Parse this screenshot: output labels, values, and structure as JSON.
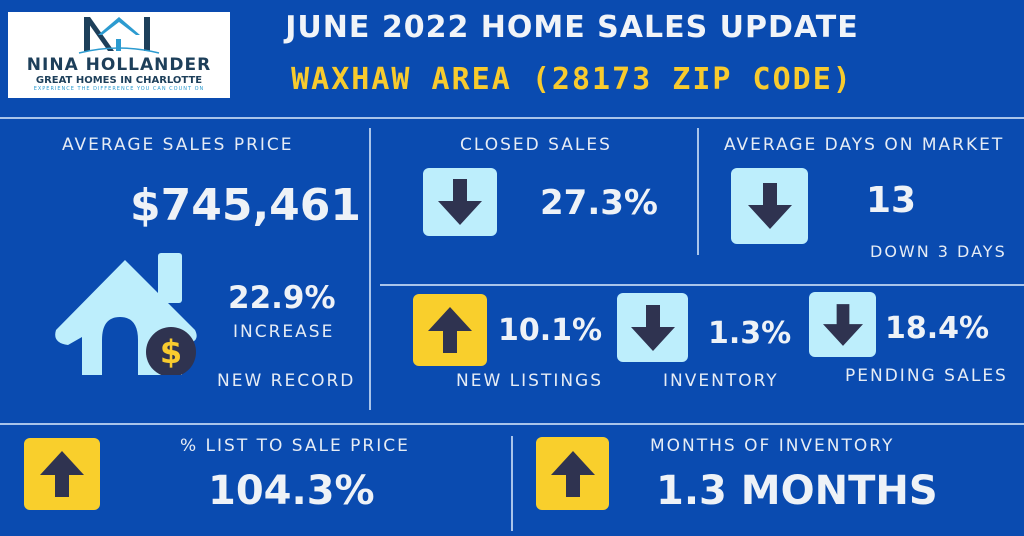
{
  "logo": {
    "monogram": "NH",
    "name": "NINA HOLLANDER",
    "tagline": "GREAT HOMES IN CHARLOTTE",
    "slogan": "EXPERIENCE THE DIFFERENCE YOU CAN COUNT ON"
  },
  "header": {
    "title": "JUNE 2022 HOME SALES UPDATE",
    "subtitle": "WAXHAW AREA (28173 ZIP CODE)"
  },
  "avg_price": {
    "label": "AVERAGE SALES PRICE",
    "value": "$745,461",
    "change": "22.9%",
    "change_label": "INCREASE",
    "note": "NEW RECORD",
    "icon": "house-dollar-icon"
  },
  "closed_sales": {
    "label": "CLOSED SALES",
    "value": "27.3%",
    "direction": "down"
  },
  "days_on_market": {
    "label": "AVERAGE DAYS ON MARKET",
    "value": "13",
    "note": "DOWN 3 DAYS",
    "direction": "down"
  },
  "new_listings": {
    "label": "NEW LISTINGS",
    "value": "10.1%",
    "direction": "up"
  },
  "inventory": {
    "label": "INVENTORY",
    "value": "1.3%",
    "direction": "down"
  },
  "pending_sales": {
    "label": "PENDING SALES",
    "value": "18.4%",
    "direction": "down"
  },
  "list_to_sale": {
    "label": "% LIST TO SALE PRICE",
    "value": "104.3%",
    "direction": "up"
  },
  "months_inventory": {
    "label": "MONTHS OF INVENTORY",
    "value": "1.3 MONTHS",
    "direction": "up"
  },
  "colors": {
    "background": "#0a4bb0",
    "accent": "#f8cb2e",
    "down_box": "#bdeefc",
    "up_box": "#f9cf2c",
    "arrow": "#2f3350"
  }
}
